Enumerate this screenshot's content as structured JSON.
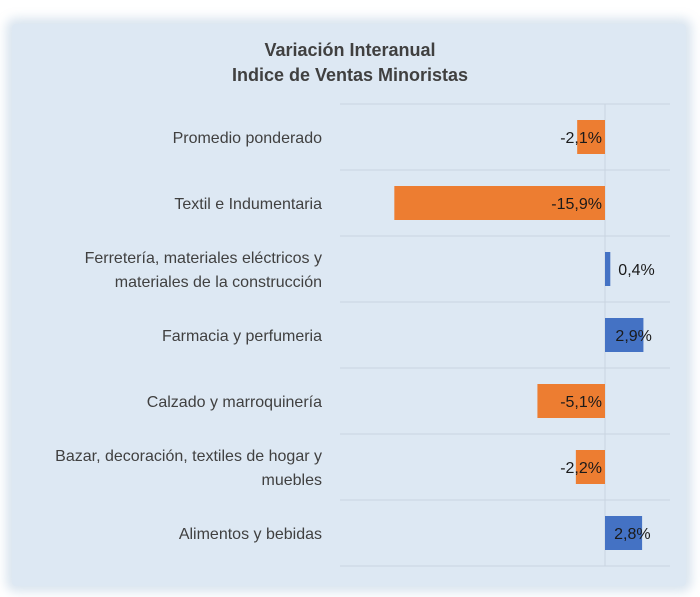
{
  "chart_data": {
    "type": "bar",
    "orientation": "horizontal",
    "title": "Variación Interanual",
    "subtitle": "Indice de Ventas Minoristas",
    "categories": [
      [
        "Promedio ponderado"
      ],
      [
        "Textil e Indumentaria"
      ],
      [
        "Ferretería, materiales eléctricos y",
        "materiales de la construcción"
      ],
      [
        "Farmacia y perfumeria"
      ],
      [
        "Calzado y marroquinería"
      ],
      [
        "Bazar, decoración, textiles de hogar y",
        "muebles"
      ],
      [
        "Alimentos y bebidas"
      ]
    ],
    "values": [
      -2.1,
      -15.9,
      0.4,
      2.9,
      -5.1,
      -2.2,
      2.8
    ],
    "labels": [
      "-2,1%",
      "-15,9%",
      "0,4%",
      "2,9%",
      "-5,1%",
      "-2,2%",
      "2,8%"
    ],
    "unit": "%",
    "colors": {
      "negative": "#ed7d31",
      "positive": "#4472c4",
      "grid": "#c9d4e0",
      "background": "#dde8f3"
    },
    "grid": true,
    "legend": "none"
  }
}
